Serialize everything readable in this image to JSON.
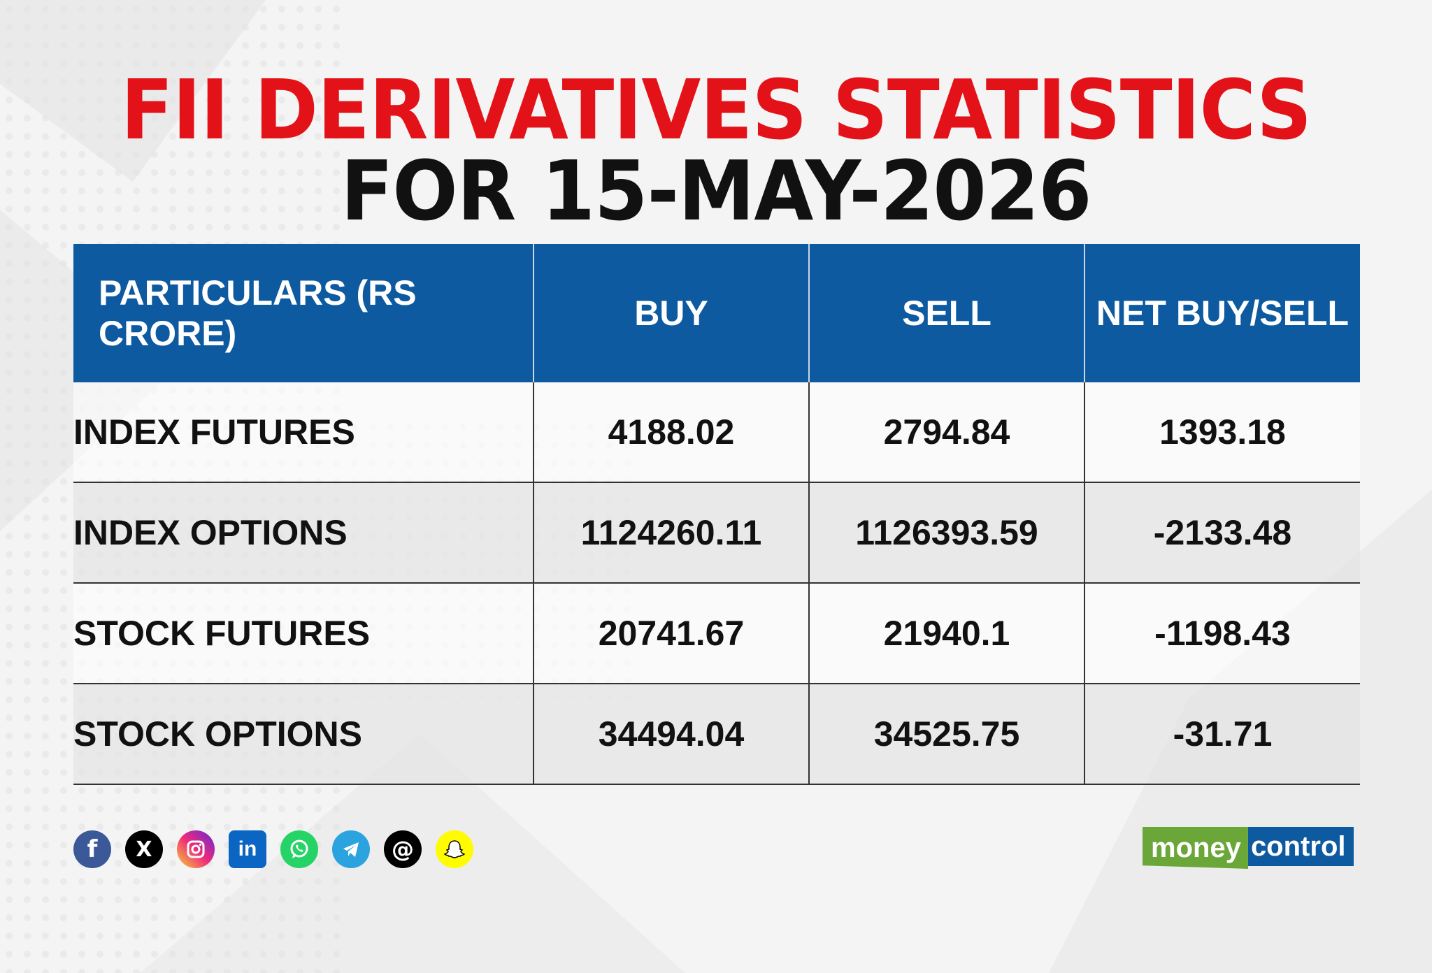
{
  "title": {
    "line1": "FII DERIVATIVES STATISTICS",
    "line2": "FOR 15-MAY-2026"
  },
  "table": {
    "headers": [
      "PARTICULARS (RS CRORE)",
      "BUY",
      "SELL",
      "NET BUY/SELL"
    ],
    "rows": [
      [
        "INDEX FUTURES",
        "4188.02",
        "2794.84",
        "1393.18"
      ],
      [
        "INDEX OPTIONS",
        "1124260.11",
        "1126393.59",
        "-2133.48"
      ],
      [
        "STOCK FUTURES",
        "20741.67",
        "21940.1",
        "-1198.43"
      ],
      [
        "STOCK OPTIONS",
        "34494.04",
        "34525.75",
        "-31.71"
      ]
    ]
  },
  "social_icons": [
    {
      "icon": "facebook-icon",
      "glyph": "f",
      "color": "#3b5998"
    },
    {
      "icon": "x-icon",
      "glyph": "𝕏",
      "color": "#000000"
    },
    {
      "icon": "instagram-icon",
      "glyph": "◎",
      "color": "#d62976"
    },
    {
      "icon": "linkedin-icon",
      "glyph": "in",
      "color": "#0a66c2"
    },
    {
      "icon": "whatsapp-icon",
      "glyph": "✆",
      "color": "#25d366"
    },
    {
      "icon": "telegram-icon",
      "glyph": "➤",
      "color": "#2aa3df"
    },
    {
      "icon": "threads-icon",
      "glyph": "@",
      "color": "#000000"
    },
    {
      "icon": "snapchat-icon",
      "glyph": "👻",
      "color": "#fffc00"
    }
  ],
  "logo": {
    "part1": "money",
    "part2": "control"
  },
  "colors": {
    "title_red": "#e31218",
    "header_blue": "#0d5aa0",
    "logo_green": "#6aa738"
  }
}
